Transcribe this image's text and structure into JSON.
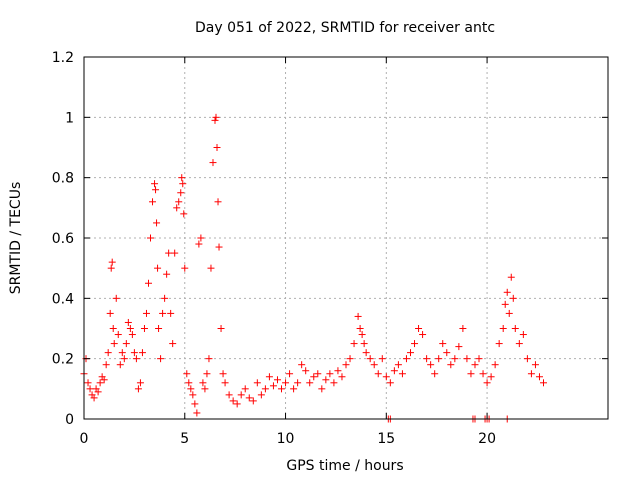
{
  "chart_data": {
    "type": "scatter",
    "title": "Day 051 of 2022, SRMTID for receiver antc",
    "xlabel": "GPS time / hours",
    "ylabel": "SRMTID / TECUs",
    "xlim": [
      0,
      26
    ],
    "ylim": [
      0,
      1.2
    ],
    "xticks": [
      0,
      5,
      10,
      15,
      20
    ],
    "xtick_labels": [
      "0",
      "5",
      "10",
      "15",
      "20"
    ],
    "yticks": [
      0,
      0.2,
      0.4,
      0.6,
      0.8,
      1.0,
      1.2
    ],
    "ytick_labels": [
      "0",
      "0.2",
      "0.4",
      "0.6",
      "0.8",
      "1",
      "1.2"
    ],
    "grid": true,
    "marker": "plus",
    "color": "#ff0000",
    "series": [
      {
        "name": "SRMTID",
        "x": [
          0.0,
          0.1,
          0.2,
          0.3,
          0.4,
          0.5,
          0.6,
          0.7,
          0.8,
          0.9,
          1.0,
          1.1,
          1.2,
          1.3,
          1.35,
          1.4,
          1.45,
          1.5,
          1.6,
          1.7,
          1.8,
          1.9,
          2.0,
          2.1,
          2.2,
          2.3,
          2.4,
          2.5,
          2.6,
          2.7,
          2.8,
          2.9,
          3.0,
          3.1,
          3.2,
          3.3,
          3.4,
          3.5,
          3.55,
          3.6,
          3.65,
          3.7,
          3.8,
          3.9,
          4.0,
          4.1,
          4.2,
          4.3,
          4.4,
          4.5,
          4.6,
          4.7,
          4.8,
          4.85,
          4.9,
          4.95,
          5.0,
          5.1,
          5.2,
          5.3,
          5.4,
          5.5,
          5.6,
          5.7,
          5.8,
          5.9,
          6.0,
          6.1,
          6.2,
          6.3,
          6.4,
          6.5,
          6.55,
          6.6,
          6.65,
          6.7,
          6.8,
          6.9,
          7.0,
          7.2,
          7.4,
          7.6,
          7.8,
          8.0,
          8.2,
          8.4,
          8.6,
          8.8,
          9.0,
          9.2,
          9.4,
          9.6,
          9.8,
          10.0,
          10.2,
          10.4,
          10.6,
          10.8,
          11.0,
          11.2,
          11.4,
          11.6,
          11.8,
          12.0,
          12.2,
          12.4,
          12.6,
          12.8,
          13.0,
          13.2,
          13.4,
          13.6,
          13.7,
          13.8,
          13.9,
          14.0,
          14.2,
          14.4,
          14.6,
          14.8,
          15.0,
          15.2,
          15.4,
          15.6,
          15.8,
          16.0,
          16.2,
          16.4,
          16.6,
          16.8,
          17.0,
          17.2,
          17.4,
          17.6,
          17.8,
          18.0,
          18.2,
          18.4,
          18.6,
          18.8,
          19.0,
          19.2,
          19.4,
          19.6,
          19.8,
          20.0,
          20.2,
          20.4,
          20.6,
          20.8,
          20.9,
          21.0,
          21.1,
          21.2,
          21.3,
          21.4,
          21.6,
          21.8,
          22.0,
          22.2,
          22.4,
          22.6,
          22.8,
          15.1,
          15.2,
          19.3,
          19.4,
          19.9,
          20.0,
          20.1,
          21.0
        ],
        "y": [
          0.15,
          0.2,
          0.12,
          0.1,
          0.08,
          0.07,
          0.1,
          0.09,
          0.12,
          0.14,
          0.13,
          0.18,
          0.22,
          0.35,
          0.5,
          0.52,
          0.3,
          0.25,
          0.4,
          0.28,
          0.18,
          0.22,
          0.2,
          0.25,
          0.32,
          0.3,
          0.28,
          0.22,
          0.2,
          0.1,
          0.12,
          0.22,
          0.3,
          0.35,
          0.45,
          0.6,
          0.72,
          0.78,
          0.76,
          0.65,
          0.5,
          0.3,
          0.2,
          0.35,
          0.4,
          0.48,
          0.55,
          0.35,
          0.25,
          0.55,
          0.7,
          0.72,
          0.75,
          0.8,
          0.78,
          0.68,
          0.5,
          0.15,
          0.12,
          0.1,
          0.08,
          0.05,
          0.02,
          0.58,
          0.6,
          0.12,
          0.1,
          0.15,
          0.2,
          0.5,
          0.85,
          0.99,
          1.0,
          0.9,
          0.72,
          0.57,
          0.3,
          0.15,
          0.12,
          0.08,
          0.06,
          0.05,
          0.08,
          0.1,
          0.07,
          0.06,
          0.12,
          0.08,
          0.1,
          0.14,
          0.11,
          0.13,
          0.1,
          0.12,
          0.15,
          0.1,
          0.12,
          0.18,
          0.16,
          0.12,
          0.14,
          0.15,
          0.1,
          0.13,
          0.15,
          0.12,
          0.16,
          0.14,
          0.18,
          0.2,
          0.25,
          0.34,
          0.3,
          0.28,
          0.25,
          0.22,
          0.2,
          0.18,
          0.15,
          0.2,
          0.14,
          0.12,
          0.16,
          0.18,
          0.15,
          0.2,
          0.22,
          0.25,
          0.3,
          0.28,
          0.2,
          0.18,
          0.15,
          0.2,
          0.25,
          0.22,
          0.18,
          0.2,
          0.24,
          0.3,
          0.2,
          0.15,
          0.18,
          0.2,
          0.15,
          0.12,
          0.14,
          0.18,
          0.25,
          0.3,
          0.38,
          0.42,
          0.35,
          0.47,
          0.4,
          0.3,
          0.25,
          0.28,
          0.2,
          0.15,
          0.18,
          0.14,
          0.12,
          0.0,
          0.0,
          0.0,
          0.0,
          0.0,
          0.0,
          0.0,
          0.0
        ]
      }
    ]
  }
}
